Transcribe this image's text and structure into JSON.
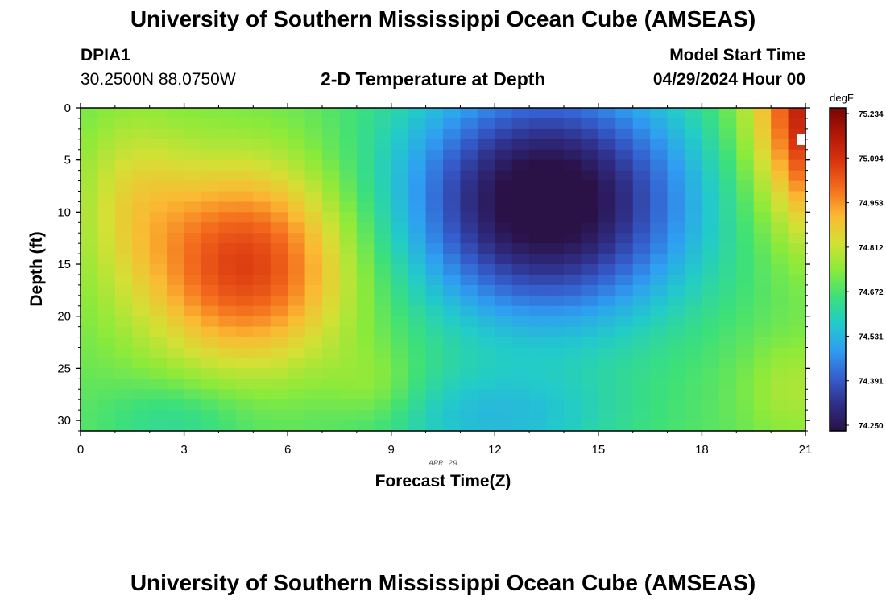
{
  "header": {
    "title": "University of Southern Mississippi Ocean Cube (AMSEAS)",
    "station": "DPIA1",
    "coords": "30.2500N  88.0750W",
    "plot_title": "2-D Temperature at Depth",
    "model_label": "Model Start Time",
    "model_time": "04/29/2024 Hour 00"
  },
  "footer": {
    "title": "University of Southern Mississippi Ocean Cube (AMSEAS)"
  },
  "chart_data": {
    "type": "heatmap",
    "title": "2-D Temperature at Depth",
    "xlabel": "Forecast Time(Z)",
    "ylabel": "Depth (ft)",
    "date_label": "APR 29",
    "xlim": [
      0,
      21
    ],
    "ylim": [
      0,
      31
    ],
    "x_ticks": [
      "0",
      "3",
      "6",
      "9",
      "12",
      "15",
      "18",
      "21"
    ],
    "y_ticks": [
      "0",
      "5",
      "10",
      "15",
      "20",
      "25",
      "30"
    ],
    "colorbar": {
      "unit": "degF",
      "min": 74.25,
      "max": 75.234,
      "tick_labels": [
        "75.234",
        "75.094",
        "74.953",
        "74.812",
        "74.672",
        "74.531",
        "74.391",
        "74.250"
      ],
      "colors": [
        "#2a1146",
        "#2f2f88",
        "#3560d0",
        "#2f9ef2",
        "#22cbc9",
        "#3ce07a",
        "#8cea3a",
        "#d4e035",
        "#fbb933",
        "#f46d1d",
        "#d9350f",
        "#b2170a",
        "#780505"
      ]
    },
    "grid_cols": 42,
    "grid_rows": 31,
    "field_model": "Estimated temperature field (degF) read from the color shading: warm core (~75.05) at hours 3-6 and 10-20 ft; cold core (~74.25) at hours 12-15 near surface; warm surface water (~75.2) at hour 21; cooler bottom water (~74.7) at 26-31 ft."
  }
}
